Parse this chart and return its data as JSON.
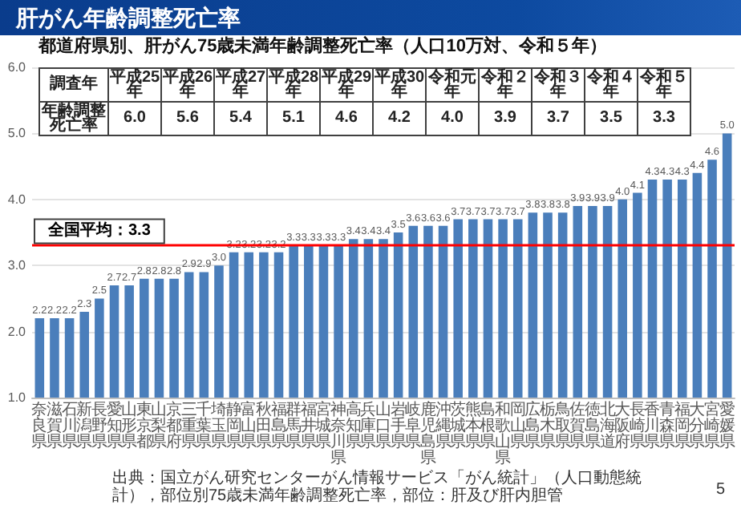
{
  "chart_data": [
    {
      "type": "bar",
      "title": "肝がん年齢調整死亡率",
      "subtitle": "都道府県別、肝がん75歳未満年齢調整死亡率（人口10万対、令和５年）",
      "categories": [
        "奈良県",
        "滋賀県",
        "石川県",
        "新潟県",
        "長野県",
        "愛知県",
        "山形県",
        "東京都",
        "山梨県",
        "京都府",
        "三重県",
        "千葉県",
        "埼玉県",
        "静岡県",
        "富山県",
        "秋田県",
        "福島県",
        "群馬県",
        "福井県",
        "宮城県",
        "神奈川県",
        "高知県",
        "兵庫県",
        "山口県",
        "岩手県",
        "岐阜県",
        "鹿児島県",
        "沖縄県",
        "茨城県",
        "熊本県",
        "島根県",
        "和歌山県",
        "岡山県",
        "広島県",
        "栃木県",
        "鳥取県",
        "佐賀県",
        "徳島県",
        "北海道",
        "大阪府",
        "長崎県",
        "香川県",
        "青森県",
        "福岡県",
        "大分県",
        "宮崎県",
        "愛媛県"
      ],
      "values": [
        2.2,
        2.2,
        2.2,
        2.3,
        2.5,
        2.7,
        2.7,
        2.8,
        2.8,
        2.8,
        2.9,
        2.9,
        3.0,
        3.2,
        3.2,
        3.2,
        3.2,
        3.3,
        3.3,
        3.3,
        3.3,
        3.4,
        3.4,
        3.4,
        3.5,
        3.6,
        3.6,
        3.6,
        3.7,
        3.7,
        3.7,
        3.7,
        3.7,
        3.8,
        3.8,
        3.8,
        3.9,
        3.9,
        3.9,
        4.0,
        4.1,
        4.3,
        4.3,
        4.3,
        4.4,
        4.6,
        5.0
      ],
      "value_labels": [
        "2.2",
        "2.2",
        "2.2",
        "2.3",
        "2.5",
        "2.7",
        "2.7",
        "2.8",
        "2.8",
        "2.8",
        "2.9",
        "2.9",
        "3.0",
        "3.2",
        "3.2",
        "3.2",
        "3.2",
        "3.3",
        "3.3",
        "3.3",
        "3.3",
        "3.4",
        "3.4",
        "3.4",
        "3.5",
        "3.6",
        "3.6",
        "3.6",
        "3.7",
        "3.7",
        "3.7",
        "3.7",
        "3.7",
        "3.8",
        "3.8",
        "3.8",
        "3.9",
        "3.9",
        "3.9",
        "4.0",
        "4.1",
        "4.3",
        "4.3",
        "4.3",
        "4.4",
        "4.6",
        "5.0"
      ],
      "color": "#4a7ebb",
      "ylim": [
        1,
        6
      ],
      "yticks": [
        {
          "value": 1,
          "label": "1.0"
        },
        {
          "value": 2,
          "label": "2.0"
        },
        {
          "value": 3,
          "label": "3.0"
        },
        {
          "value": 4,
          "label": "4.0"
        },
        {
          "value": 5,
          "label": "5.0"
        },
        {
          "value": 6,
          "label": "6.0"
        }
      ],
      "grid": "y",
      "ref_lines": [
        {
          "axis": "y",
          "value": 3.3,
          "label": "全国平均：3.3",
          "color": "#ff0000"
        }
      ],
      "annotations": [
        "出典：国立がん研究センターがん情報サービス「がん統計」（人口動態統計），部位別75歳未満年齢調整死亡率，部位：肝及び肝内胆管",
        "5"
      ]
    },
    {
      "type": "other",
      "xlabel": "調査年",
      "ylabel": "年齢調整死亡率",
      "categories": [
        "平成25年",
        "平成26年",
        "平成27年",
        "平成28年",
        "平成29年",
        "平成30年",
        "令和元年",
        "令和２年",
        "令和３年",
        "令和４年",
        "令和５年"
      ],
      "values": [
        6.0,
        5.6,
        5.4,
        5.1,
        4.6,
        4.2,
        4.0,
        3.9,
        3.7,
        3.5,
        3.3
      ],
      "value_labels": [
        "6.0",
        "5.6",
        "5.4",
        "5.1",
        "4.6",
        "4.2",
        "4.0",
        "3.9",
        "3.7",
        "3.5",
        "3.3"
      ]
    }
  ]
}
